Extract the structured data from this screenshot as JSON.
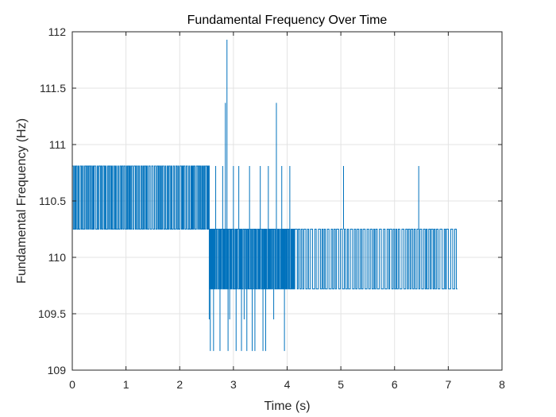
{
  "chart_data": {
    "type": "line",
    "title": "Fundamental Frequency Over Time",
    "xlabel": "Time (s)",
    "ylabel": "Fundamental Frequency (Hz)",
    "xlim": [
      0,
      8
    ],
    "ylim": [
      109,
      112
    ],
    "xticks": [
      0,
      1,
      2,
      3,
      4,
      5,
      6,
      7,
      8
    ],
    "yticks": [
      109,
      109.5,
      110,
      110.5,
      111,
      111.5,
      112
    ],
    "xtick_labels": [
      "0",
      "1",
      "2",
      "3",
      "4",
      "5",
      "6",
      "7",
      "8"
    ],
    "ytick_labels": [
      "109",
      "109.5",
      "110",
      "110.5",
      "111",
      "111.5",
      "112"
    ],
    "grid": true,
    "series": [
      {
        "color": "#0072BD",
        "segments": [
          {
            "x_start": 0.0,
            "x_end": 2.55,
            "levels": [
              110.25,
              110.81
            ],
            "step": 0.02
          },
          {
            "x_start": 2.55,
            "x_end": 4.15,
            "levels": [
              109.72,
              110.25
            ],
            "step": 0.015
          },
          {
            "x_start": 4.15,
            "x_end": 7.17,
            "levels": [
              109.72,
              110.25
            ],
            "step": 0.03
          }
        ],
        "spikes": [
          {
            "x": 2.55,
            "y": 109.45
          },
          {
            "x": 2.57,
            "y": 109.17
          },
          {
            "x": 2.63,
            "y": 109.17
          },
          {
            "x": 2.67,
            "y": 110.81
          },
          {
            "x": 2.75,
            "y": 109.17
          },
          {
            "x": 2.8,
            "y": 110.81
          },
          {
            "x": 2.85,
            "y": 111.37
          },
          {
            "x": 2.88,
            "y": 111.93
          },
          {
            "x": 2.9,
            "y": 109.17
          },
          {
            "x": 2.93,
            "y": 109.45
          },
          {
            "x": 3.0,
            "y": 110.81
          },
          {
            "x": 3.05,
            "y": 109.17
          },
          {
            "x": 3.1,
            "y": 110.81
          },
          {
            "x": 3.15,
            "y": 109.17
          },
          {
            "x": 3.2,
            "y": 109.45
          },
          {
            "x": 3.25,
            "y": 109.17
          },
          {
            "x": 3.3,
            "y": 110.81
          },
          {
            "x": 3.35,
            "y": 109.17
          },
          {
            "x": 3.4,
            "y": 109.17
          },
          {
            "x": 3.5,
            "y": 110.81
          },
          {
            "x": 3.55,
            "y": 109.17
          },
          {
            "x": 3.6,
            "y": 109.17
          },
          {
            "x": 3.65,
            "y": 110.81
          },
          {
            "x": 3.75,
            "y": 109.45
          },
          {
            "x": 3.8,
            "y": 111.37
          },
          {
            "x": 3.9,
            "y": 110.81
          },
          {
            "x": 3.95,
            "y": 109.17
          },
          {
            "x": 4.05,
            "y": 110.81
          },
          {
            "x": 5.05,
            "y": 110.81
          },
          {
            "x": 6.45,
            "y": 110.81
          }
        ]
      }
    ]
  }
}
